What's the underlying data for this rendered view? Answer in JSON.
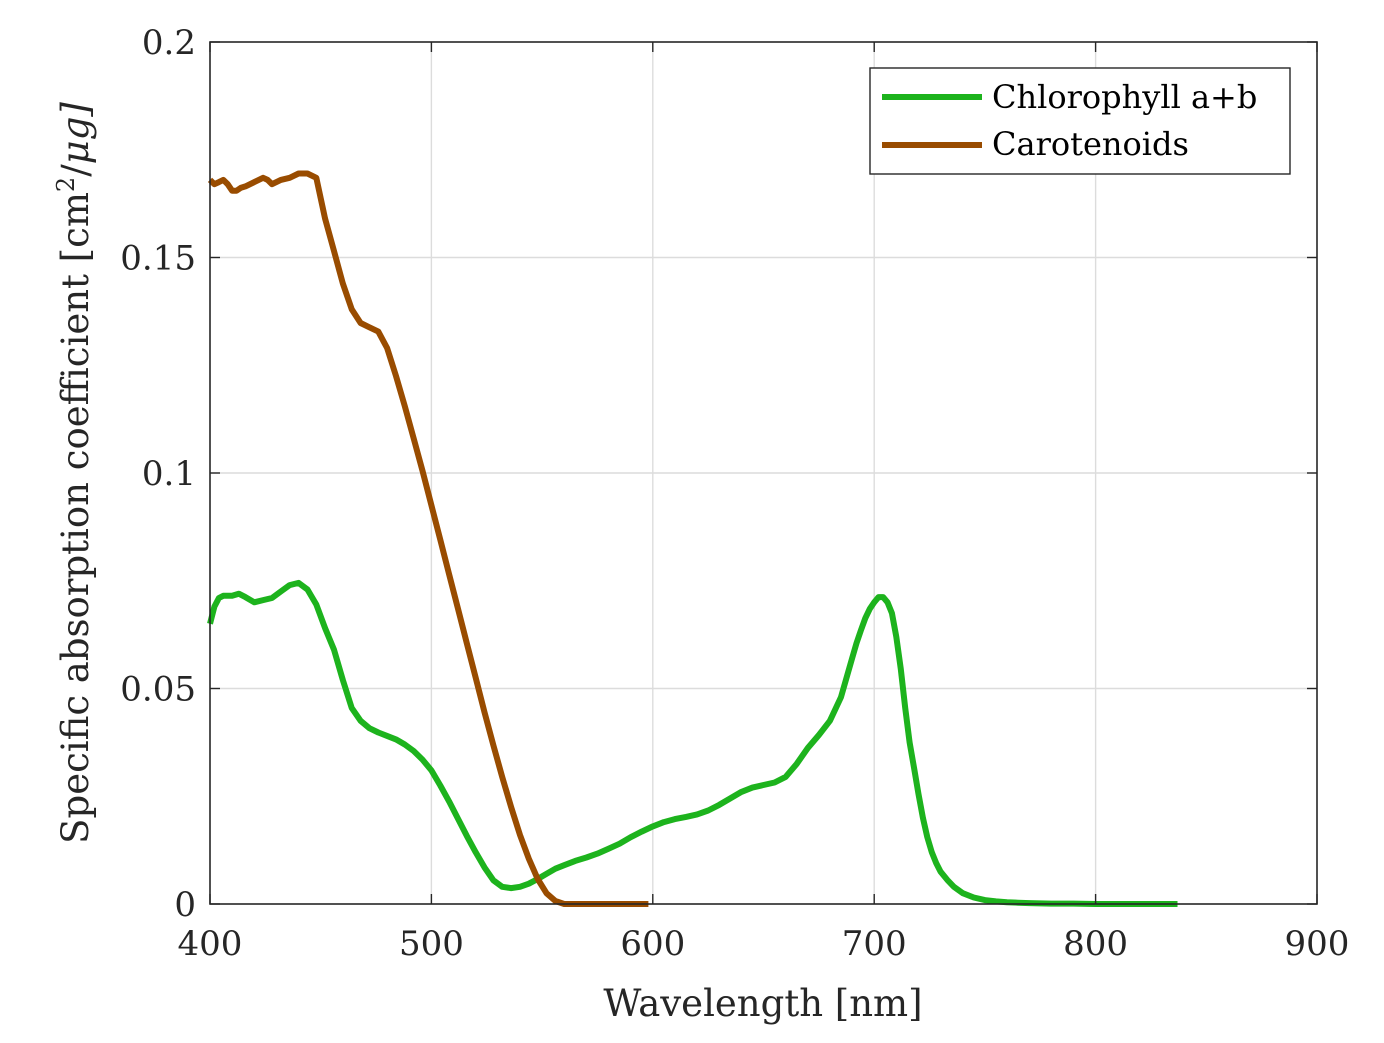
{
  "chart_data": {
    "type": "line",
    "title": "",
    "xlabel": "Wavelength [nm]",
    "ylabel_parts": [
      "Specific absorption coefficient [cm",
      "2",
      "/",
      "μ",
      "g]"
    ],
    "xlim": [
      400,
      900
    ],
    "ylim": [
      0,
      0.2
    ],
    "xticks": [
      400,
      500,
      600,
      700,
      800,
      900
    ],
    "xtick_labels": [
      "400",
      "500",
      "600",
      "700",
      "800",
      "900"
    ],
    "yticks": [
      0,
      0.05,
      0.1,
      0.15,
      0.2
    ],
    "ytick_labels": [
      "0",
      "0.05",
      "0.1",
      "0.15",
      "0.2"
    ],
    "grid": true,
    "legend_position": "top-right",
    "series": [
      {
        "name": "Chlorophyll a+b",
        "color": "#1db31d",
        "x": [
          400,
          402,
          404,
          406,
          410,
          413,
          416,
          420,
          424,
          428,
          432,
          436,
          440,
          444,
          448,
          452,
          456,
          460,
          464,
          468,
          472,
          476,
          480,
          484,
          488,
          492,
          496,
          500,
          504,
          508,
          512,
          516,
          520,
          524,
          528,
          532,
          536,
          540,
          544,
          548,
          552,
          556,
          560,
          565,
          570,
          575,
          580,
          585,
          590,
          595,
          600,
          605,
          610,
          615,
          620,
          625,
          630,
          635,
          640,
          645,
          650,
          655,
          660,
          665,
          670,
          675,
          680,
          685,
          690,
          692,
          694,
          696,
          698,
          700,
          702,
          704,
          706,
          708,
          710,
          712,
          714,
          716,
          718,
          720,
          722,
          724,
          726,
          728,
          730,
          733,
          736,
          740,
          745,
          750,
          755,
          760,
          765,
          770,
          780,
          790,
          800,
          810,
          820,
          837
        ],
        "y": [
          0.065,
          0.069,
          0.071,
          0.0715,
          0.0715,
          0.072,
          0.0712,
          0.07,
          0.0705,
          0.071,
          0.0725,
          0.074,
          0.0745,
          0.073,
          0.0695,
          0.064,
          0.059,
          0.052,
          0.0455,
          0.0425,
          0.0408,
          0.0398,
          0.039,
          0.0382,
          0.037,
          0.0355,
          0.0335,
          0.031,
          0.0275,
          0.0238,
          0.0198,
          0.0158,
          0.012,
          0.0085,
          0.0055,
          0.004,
          0.0037,
          0.004,
          0.0047,
          0.0058,
          0.007,
          0.0082,
          0.009,
          0.01,
          0.0108,
          0.0117,
          0.0128,
          0.014,
          0.0155,
          0.0168,
          0.018,
          0.019,
          0.0197,
          0.0202,
          0.0208,
          0.0217,
          0.023,
          0.0245,
          0.026,
          0.027,
          0.0276,
          0.0282,
          0.0295,
          0.0325,
          0.0362,
          0.0392,
          0.0425,
          0.048,
          0.057,
          0.0605,
          0.0635,
          0.0663,
          0.0685,
          0.07,
          0.0712,
          0.0712,
          0.07,
          0.0675,
          0.062,
          0.0545,
          0.0455,
          0.0375,
          0.0315,
          0.0255,
          0.02,
          0.0155,
          0.012,
          0.0095,
          0.0075,
          0.0056,
          0.004,
          0.0025,
          0.0015,
          0.0009,
          0.0006,
          0.0004,
          0.0003,
          0.0002,
          0.0001,
          0.0001,
          0.0,
          0.0,
          0.0,
          0.0
        ]
      },
      {
        "name": "Carotenoids",
        "color": "#994c00",
        "x": [
          400,
          402,
          404,
          406,
          408,
          410,
          412,
          414,
          416,
          420,
          424,
          426,
          428,
          432,
          436,
          440,
          444,
          448,
          452,
          456,
          460,
          464,
          468,
          472,
          476,
          480,
          484,
          488,
          492,
          496,
          500,
          504,
          508,
          512,
          516,
          520,
          524,
          528,
          532,
          536,
          540,
          544,
          548,
          552,
          556,
          560,
          570,
          580,
          590,
          598
        ],
        "y": [
          0.168,
          0.167,
          0.1675,
          0.168,
          0.167,
          0.1655,
          0.1655,
          0.1662,
          0.1665,
          0.1675,
          0.1685,
          0.168,
          0.167,
          0.168,
          0.1685,
          0.1695,
          0.1695,
          0.1685,
          0.159,
          0.1515,
          0.144,
          0.138,
          0.1348,
          0.1338,
          0.1328,
          0.129,
          0.1225,
          0.1155,
          0.108,
          0.1005,
          0.0925,
          0.0845,
          0.0765,
          0.0685,
          0.0605,
          0.0525,
          0.0445,
          0.0368,
          0.0295,
          0.0225,
          0.016,
          0.0105,
          0.0058,
          0.0025,
          0.0007,
          0.0,
          0.0,
          0.0,
          0.0,
          0.0
        ]
      }
    ]
  }
}
